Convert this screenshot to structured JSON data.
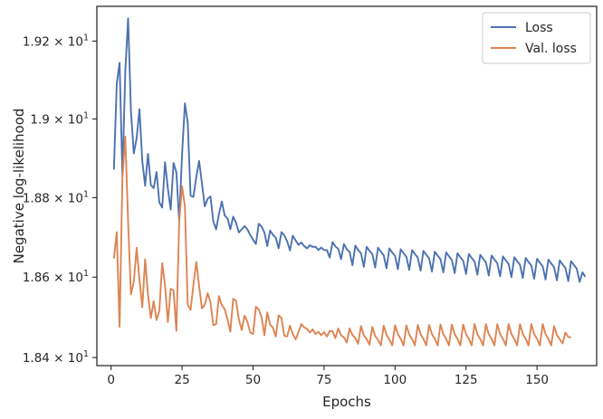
{
  "chart_data": {
    "type": "line",
    "title": "",
    "xlabel": "Epochs",
    "ylabel": "Negative log-likelihood",
    "xlim": [
      -5,
      171
    ],
    "ylim": [
      18.38,
      19.29
    ],
    "y_scale": "log",
    "grid": false,
    "legend_position": "top-right",
    "x_ticks": [
      0,
      25,
      50,
      75,
      100,
      125,
      150
    ],
    "x_tick_labels": [
      "0",
      "25",
      "50",
      "75",
      "100",
      "125",
      "150"
    ],
    "y_ticks": [
      18.4,
      18.6,
      18.8,
      19.0,
      19.2
    ],
    "y_tick_labels": [
      {
        "mantissa": "1.84",
        "times": " × ",
        "base": "10",
        "exp": "1"
      },
      {
        "mantissa": "1.86",
        "times": " × ",
        "base": "10",
        "exp": "1"
      },
      {
        "mantissa": "1.88",
        "times": " × ",
        "base": "10",
        "exp": "1"
      },
      {
        "mantissa": "1.9",
        "times": " × ",
        "base": "10",
        "exp": "1"
      },
      {
        "mantissa": "1.92",
        "times": " × ",
        "base": "10",
        "exp": "1"
      }
    ],
    "series": [
      {
        "name": "Loss",
        "color": "#4c72b0",
        "x_start": 1,
        "values": [
          18.871,
          19.09,
          19.144,
          18.853,
          19.12,
          19.259,
          19.02,
          18.912,
          18.951,
          19.025,
          18.892,
          18.83,
          18.911,
          18.832,
          18.824,
          18.865,
          18.788,
          18.775,
          18.89,
          18.823,
          18.77,
          18.888,
          18.864,
          18.74,
          18.91,
          19.04,
          18.99,
          18.805,
          18.802,
          18.852,
          18.893,
          18.836,
          18.778,
          18.797,
          18.803,
          18.74,
          18.72,
          18.759,
          18.79,
          18.755,
          18.748,
          18.72,
          18.752,
          18.737,
          18.712,
          18.72,
          18.728,
          18.72,
          18.706,
          18.694,
          18.683,
          18.734,
          18.727,
          18.712,
          18.678,
          18.717,
          18.706,
          18.699,
          18.672,
          18.713,
          18.705,
          18.69,
          18.667,
          18.704,
          18.692,
          18.681,
          18.687,
          18.678,
          18.672,
          18.68,
          18.676,
          18.676,
          18.668,
          18.674,
          18.668,
          18.668,
          18.649,
          18.688,
          18.677,
          18.671,
          18.645,
          18.683,
          18.67,
          18.663,
          18.63,
          18.679,
          18.668,
          18.66,
          18.626,
          18.676,
          18.666,
          18.658,
          18.624,
          18.674,
          18.664,
          18.655,
          18.622,
          18.672,
          18.662,
          18.653,
          18.62,
          18.67,
          18.66,
          18.651,
          18.618,
          18.668,
          18.658,
          18.649,
          18.616,
          18.666,
          18.656,
          18.647,
          18.614,
          18.664,
          18.654,
          18.645,
          18.612,
          18.662,
          18.652,
          18.643,
          18.61,
          18.66,
          18.65,
          18.641,
          18.608,
          18.658,
          18.648,
          18.639,
          18.606,
          18.656,
          18.646,
          18.637,
          18.604,
          18.654,
          18.644,
          18.635,
          18.602,
          18.652,
          18.642,
          18.633,
          18.6,
          18.65,
          18.64,
          18.631,
          18.598,
          18.648,
          18.638,
          18.629,
          18.596,
          18.646,
          18.636,
          18.627,
          18.594,
          18.644,
          18.634,
          18.625,
          18.592,
          18.642,
          18.632,
          18.623,
          18.59,
          18.64,
          18.63,
          18.621,
          18.588,
          18.612,
          18.601
        ]
      },
      {
        "name": "Val. loss",
        "color": "#dd8452",
        "x_start": 1,
        "values": [
          18.647,
          18.713,
          18.476,
          18.851,
          18.955,
          18.739,
          18.557,
          18.588,
          18.674,
          18.593,
          18.525,
          18.645,
          18.556,
          18.498,
          18.54,
          18.493,
          18.516,
          18.635,
          18.58,
          18.488,
          18.571,
          18.567,
          18.466,
          18.741,
          18.829,
          18.778,
          18.531,
          18.518,
          18.581,
          18.638,
          18.578,
          18.522,
          18.531,
          18.56,
          18.538,
          18.48,
          18.483,
          18.553,
          18.53,
          18.52,
          18.495,
          18.464,
          18.546,
          18.541,
          18.495,
          18.468,
          18.504,
          18.489,
          18.462,
          18.458,
          18.526,
          18.519,
          18.5,
          18.455,
          18.512,
          18.482,
          18.474,
          18.452,
          18.505,
          18.498,
          18.454,
          18.452,
          18.479,
          18.458,
          18.445,
          18.463,
          18.483,
          18.475,
          18.471,
          18.462,
          18.47,
          18.458,
          18.464,
          18.455,
          18.463,
          18.452,
          18.466,
          18.465,
          18.448,
          18.472,
          18.455,
          18.45,
          18.437,
          18.472,
          18.456,
          18.448,
          18.434,
          18.478,
          18.455,
          18.446,
          18.432,
          18.476,
          18.453,
          18.444,
          18.43,
          18.479,
          18.456,
          18.445,
          18.43,
          18.48,
          18.458,
          18.446,
          18.43,
          18.48,
          18.457,
          18.446,
          18.43,
          18.481,
          18.458,
          18.446,
          18.43,
          18.481,
          18.458,
          18.446,
          18.43,
          18.482,
          18.458,
          18.446,
          18.43,
          18.482,
          18.458,
          18.446,
          18.43,
          18.482,
          18.458,
          18.446,
          18.43,
          18.483,
          18.458,
          18.446,
          18.43,
          18.483,
          18.458,
          18.446,
          18.43,
          18.483,
          18.458,
          18.446,
          18.43,
          18.483,
          18.458,
          18.446,
          18.43,
          18.483,
          18.458,
          18.446,
          18.43,
          18.483,
          18.458,
          18.446,
          18.43,
          18.483,
          18.458,
          18.446,
          18.43,
          18.478,
          18.456,
          18.445,
          18.435,
          18.462,
          18.451,
          18.45
        ]
      }
    ]
  }
}
